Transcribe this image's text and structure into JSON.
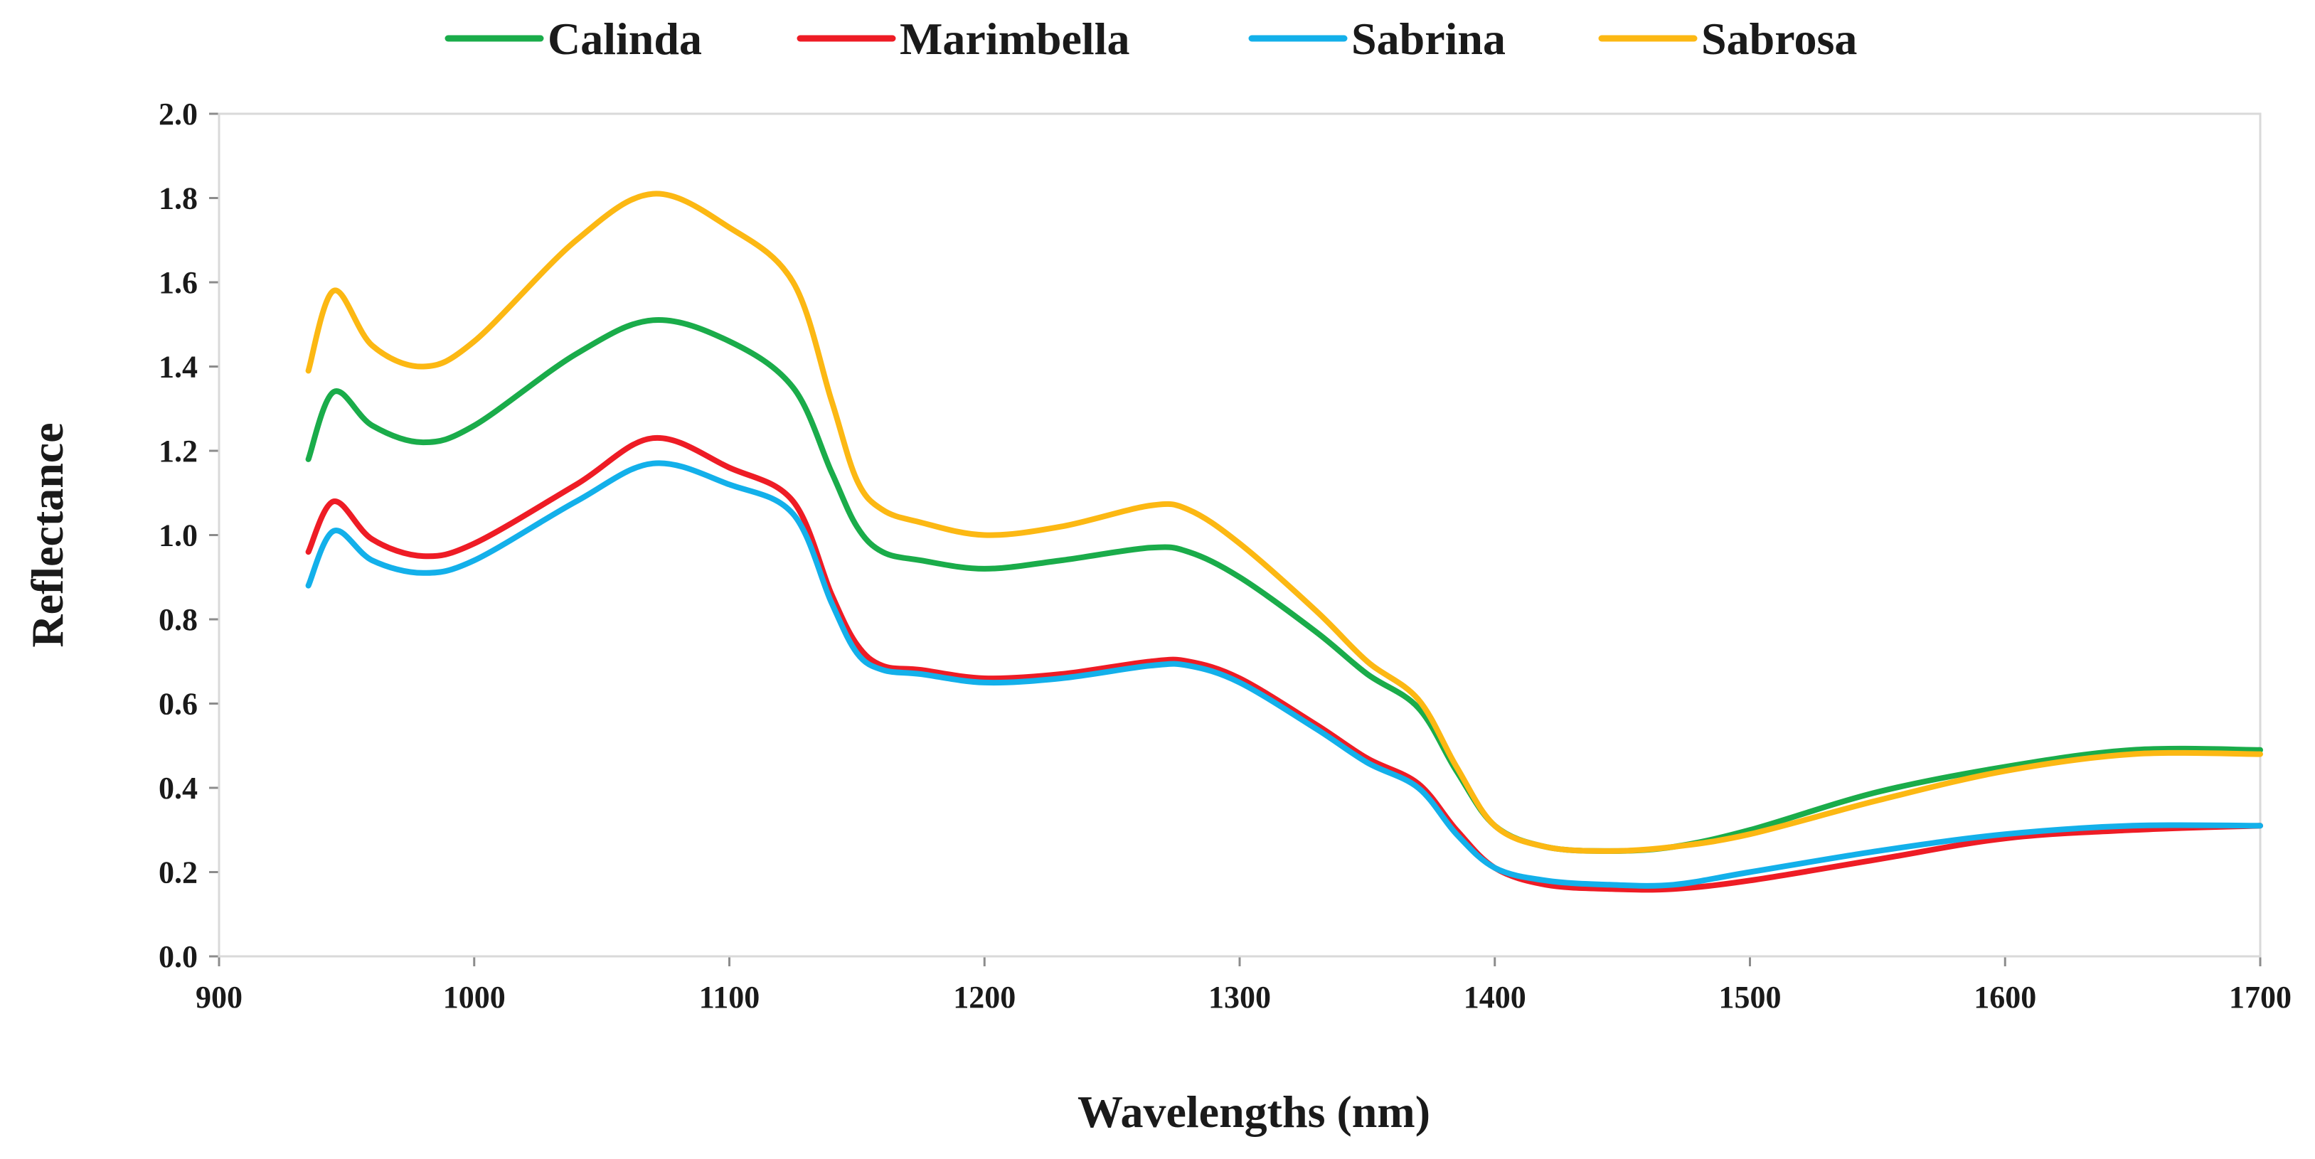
{
  "chart_data": {
    "type": "line",
    "title": "",
    "xlabel": "Wavelengths (nm)",
    "ylabel": "Reflectance",
    "xlim": [
      900,
      1700
    ],
    "ylim": [
      0,
      2.0
    ],
    "xticks": [
      900,
      1000,
      1100,
      1200,
      1300,
      1400,
      1500,
      1600,
      1700
    ],
    "yticks": [
      0.0,
      0.2,
      0.4,
      0.6,
      0.8,
      1.0,
      1.2,
      1.4,
      1.6,
      1.8,
      2.0
    ],
    "ytick_labels": [
      "0.0",
      "0.2",
      "0.4",
      "0.6",
      "0.8",
      "1.0",
      "1.2",
      "1.4",
      "1.6",
      "1.8",
      "2.0"
    ],
    "xtick_labels": [
      "900",
      "1000",
      "1100",
      "1200",
      "1300",
      "1400",
      "1500",
      "1600",
      "1700"
    ],
    "grid": false,
    "legend_position": "top",
    "x": [
      935,
      945,
      960,
      980,
      1000,
      1040,
      1070,
      1100,
      1125,
      1140,
      1150,
      1160,
      1175,
      1200,
      1230,
      1265,
      1280,
      1300,
      1330,
      1350,
      1370,
      1385,
      1400,
      1420,
      1445,
      1470,
      1500,
      1550,
      1600,
      1650,
      1700
    ],
    "series": [
      {
        "name": "Calinda",
        "color": "#1aac4a",
        "values": [
          1.18,
          1.34,
          1.26,
          1.22,
          1.26,
          1.43,
          1.51,
          1.46,
          1.35,
          1.15,
          1.02,
          0.96,
          0.94,
          0.92,
          0.94,
          0.97,
          0.96,
          0.9,
          0.77,
          0.67,
          0.59,
          0.44,
          0.31,
          0.26,
          0.25,
          0.26,
          0.3,
          0.39,
          0.45,
          0.49,
          0.49
        ]
      },
      {
        "name": "Marimbella",
        "color": "#ee1c25",
        "values": [
          0.96,
          1.08,
          0.99,
          0.95,
          0.98,
          1.12,
          1.23,
          1.16,
          1.08,
          0.86,
          0.74,
          0.69,
          0.68,
          0.66,
          0.67,
          0.7,
          0.7,
          0.66,
          0.55,
          0.47,
          0.41,
          0.3,
          0.21,
          0.17,
          0.16,
          0.16,
          0.18,
          0.23,
          0.28,
          0.3,
          0.31
        ]
      },
      {
        "name": "Sabrina",
        "color": "#13b0ea",
        "values": [
          0.88,
          1.01,
          0.94,
          0.91,
          0.94,
          1.08,
          1.17,
          1.12,
          1.05,
          0.84,
          0.72,
          0.68,
          0.67,
          0.65,
          0.66,
          0.69,
          0.69,
          0.65,
          0.54,
          0.46,
          0.4,
          0.29,
          0.21,
          0.18,
          0.17,
          0.17,
          0.2,
          0.25,
          0.29,
          0.31,
          0.31
        ]
      },
      {
        "name": "Sabrosa",
        "color": "#fcb813",
        "values": [
          1.39,
          1.58,
          1.45,
          1.4,
          1.46,
          1.7,
          1.81,
          1.73,
          1.6,
          1.32,
          1.13,
          1.06,
          1.03,
          1.0,
          1.02,
          1.07,
          1.06,
          0.98,
          0.82,
          0.7,
          0.61,
          0.45,
          0.31,
          0.26,
          0.25,
          0.26,
          0.29,
          0.37,
          0.44,
          0.48,
          0.48
        ]
      }
    ]
  }
}
